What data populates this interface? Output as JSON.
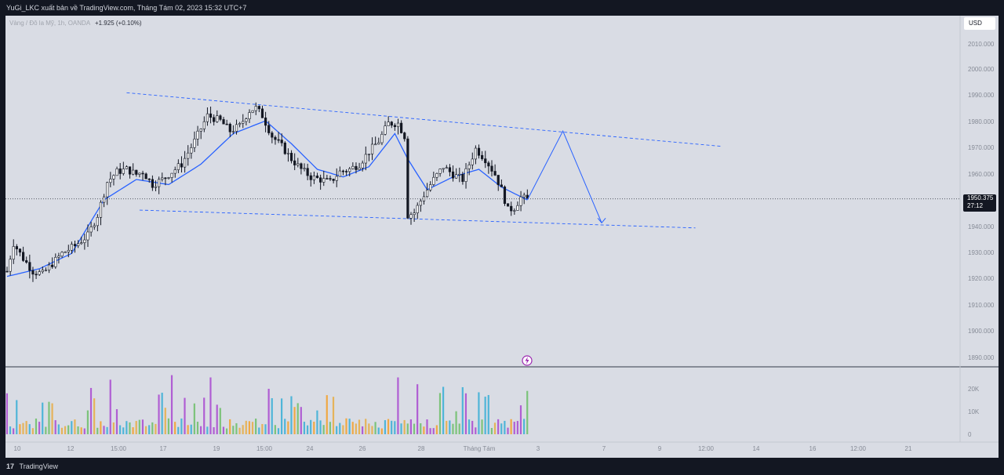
{
  "header": {
    "publisher_line": "YuGi_LKC xuất bản về TradingView.com, Tháng Tám 02, 2023 15:32 UTC+7"
  },
  "symbol": {
    "name": "Vàng / Đô la Mỹ, 1h, OANDA",
    "change": "+1.925 (+0.10%)"
  },
  "currency": "USD",
  "last_price": {
    "value": "1950.375",
    "countdown": "27:12"
  },
  "footer": {
    "logo": "17",
    "brand": "TradingView"
  },
  "colors": {
    "background": "#d9dce4",
    "candle": "#131722",
    "trend_line": "#2962ff",
    "projection": "#2962ff"
  },
  "chart_data": {
    "type": "candlestick",
    "price_axis": {
      "ticks": [
        "2010.000",
        "2000.000",
        "1990.000",
        "1980.000",
        "1970.000",
        "1960.000",
        "1940.000",
        "1930.000",
        "1920.000",
        "1910.000",
        "1900.000",
        "1890.000"
      ],
      "range": [
        1886,
        2016
      ]
    },
    "volume_axis": {
      "ticks": [
        "20K",
        "10K",
        "0"
      ]
    },
    "time_axis": {
      "ticks": [
        "10",
        "12",
        "15:00",
        "17",
        "19",
        "15:00",
        "24",
        "26",
        "28",
        "Tháng Tám",
        "3",
        "7",
        "9",
        "12:00",
        "14",
        "16",
        "12:00",
        "21"
      ]
    },
    "price_anchor": {
      "price": 1950.375
    },
    "price_path": [
      [
        0,
        1922
      ],
      [
        2,
        1933
      ],
      [
        5,
        1927
      ],
      [
        8,
        1922
      ],
      [
        11,
        1921
      ],
      [
        14,
        1925
      ],
      [
        17,
        1929
      ],
      [
        21,
        1932
      ],
      [
        25,
        1936
      ],
      [
        28,
        1944
      ],
      [
        31,
        1957
      ],
      [
        34,
        1961
      ],
      [
        37,
        1962
      ],
      [
        40,
        1960
      ],
      [
        42,
        1961
      ],
      [
        45,
        1956
      ],
      [
        48,
        1958
      ],
      [
        51,
        1961
      ],
      [
        54,
        1964
      ],
      [
        58,
        1973
      ],
      [
        62,
        1983
      ],
      [
        66,
        1981
      ],
      [
        69,
        1977
      ],
      [
        72,
        1979
      ],
      [
        75,
        1985
      ],
      [
        77,
        1986
      ],
      [
        79,
        1983
      ],
      [
        82,
        1975
      ],
      [
        85,
        1971
      ],
      [
        88,
        1966
      ],
      [
        91,
        1962
      ],
      [
        94,
        1959
      ],
      [
        97,
        1958
      ],
      [
        100,
        1957
      ],
      [
        103,
        1961
      ],
      [
        106,
        1962
      ],
      [
        109,
        1964
      ],
      [
        112,
        1969
      ],
      [
        115,
        1973
      ],
      [
        118,
        1980
      ],
      [
        121,
        1980
      ],
      [
        123,
        1975
      ],
      [
        124,
        1944
      ],
      [
        126,
        1945
      ],
      [
        129,
        1952
      ],
      [
        132,
        1958
      ],
      [
        135,
        1963
      ],
      [
        138,
        1960
      ],
      [
        141,
        1958
      ],
      [
        143,
        1964
      ],
      [
        145,
        1970
      ],
      [
        148,
        1966
      ],
      [
        151,
        1960
      ],
      [
        153,
        1954
      ],
      [
        155,
        1946
      ],
      [
        157,
        1947
      ],
      [
        159,
        1951
      ],
      [
        161,
        1950
      ]
    ],
    "ma_path": [
      [
        0,
        1920
      ],
      [
        10,
        1923
      ],
      [
        20,
        1929
      ],
      [
        30,
        1950
      ],
      [
        40,
        1958
      ],
      [
        50,
        1956
      ],
      [
        60,
        1964
      ],
      [
        70,
        1976
      ],
      [
        80,
        1981
      ],
      [
        88,
        1972
      ],
      [
        96,
        1962
      ],
      [
        104,
        1959
      ],
      [
        112,
        1963
      ],
      [
        120,
        1976
      ],
      [
        124,
        1966
      ],
      [
        130,
        1954
      ],
      [
        138,
        1959
      ],
      [
        146,
        1962
      ],
      [
        153,
        1955
      ],
      [
        161,
        1950
      ]
    ],
    "trend_lines": [
      {
        "name": "upper-trend-line",
        "from": [
          37,
          1992
        ],
        "to": [
          221,
          1971
        ]
      },
      {
        "name": "lower-trend-line",
        "from": [
          41,
          1946
        ],
        "to": [
          213,
          1939
        ]
      }
    ],
    "projection": [
      [
        161,
        1950
      ],
      [
        172,
        1977
      ],
      [
        184,
        1941
      ]
    ],
    "volume_count": 162
  }
}
